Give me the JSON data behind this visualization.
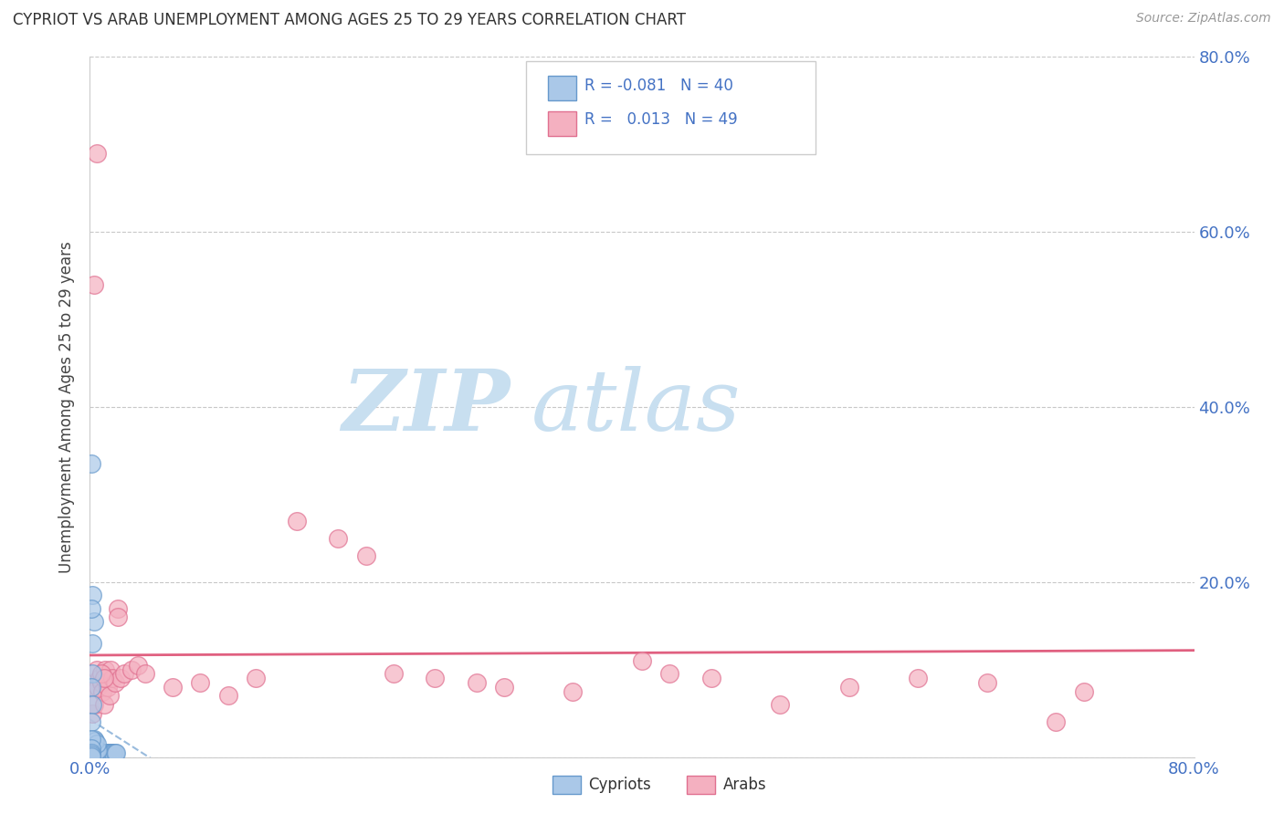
{
  "title": "CYPRIOT VS ARAB UNEMPLOYMENT AMONG AGES 25 TO 29 YEARS CORRELATION CHART",
  "source": "Source: ZipAtlas.com",
  "ylabel": "Unemployment Among Ages 25 to 29 years",
  "xlim": [
    0.0,
    0.8
  ],
  "ylim": [
    0.0,
    0.8
  ],
  "cypriot_color": "#aac8e8",
  "arab_color": "#f4b0c0",
  "cypriot_edge": "#6699cc",
  "arab_edge": "#e07090",
  "trend_cypriot_color": "#99bbdd",
  "trend_arab_color": "#e06080",
  "legend_cypriot_R": "-0.081",
  "legend_cypriot_N": "40",
  "legend_arab_R": "0.013",
  "legend_arab_N": "49",
  "background_color": "#ffffff",
  "grid_color": "#c8c8c8",
  "watermark_zip": "ZIP",
  "watermark_atlas": "atlas",
  "watermark_color_zip": "#c8dff0",
  "watermark_color_atlas": "#c8dff0",
  "cypriot_x": [
    0.002,
    0.003,
    0.004,
    0.005,
    0.006,
    0.007,
    0.008,
    0.009,
    0.01,
    0.011,
    0.012,
    0.013,
    0.014,
    0.015,
    0.016,
    0.017,
    0.018,
    0.019,
    0.002,
    0.003,
    0.004,
    0.005,
    0.006,
    0.003,
    0.004,
    0.005,
    0.002,
    0.003,
    0.002,
    0.001,
    0.001,
    0.002,
    0.001,
    0.002,
    0.001,
    0.001,
    0.001,
    0.001,
    0.001,
    0.001
  ],
  "cypriot_y": [
    0.005,
    0.005,
    0.005,
    0.005,
    0.005,
    0.005,
    0.005,
    0.005,
    0.005,
    0.005,
    0.005,
    0.005,
    0.005,
    0.005,
    0.005,
    0.005,
    0.005,
    0.005,
    0.01,
    0.01,
    0.008,
    0.008,
    0.008,
    0.02,
    0.018,
    0.015,
    0.13,
    0.155,
    0.185,
    0.335,
    0.17,
    0.095,
    0.08,
    0.06,
    0.04,
    0.02,
    0.01,
    0.005,
    0.003,
    0.001
  ],
  "arab_x": [
    0.001,
    0.002,
    0.003,
    0.004,
    0.005,
    0.006,
    0.007,
    0.008,
    0.009,
    0.01,
    0.011,
    0.012,
    0.013,
    0.014,
    0.015,
    0.016,
    0.018,
    0.02,
    0.022,
    0.025,
    0.03,
    0.035,
    0.04,
    0.06,
    0.08,
    0.1,
    0.12,
    0.15,
    0.18,
    0.2,
    0.22,
    0.25,
    0.28,
    0.3,
    0.35,
    0.4,
    0.42,
    0.45,
    0.5,
    0.55,
    0.6,
    0.65,
    0.7,
    0.72,
    0.003,
    0.005,
    0.008,
    0.01,
    0.02
  ],
  "arab_y": [
    0.005,
    0.05,
    0.06,
    0.08,
    0.1,
    0.08,
    0.09,
    0.085,
    0.075,
    0.06,
    0.1,
    0.09,
    0.08,
    0.07,
    0.1,
    0.09,
    0.085,
    0.17,
    0.09,
    0.095,
    0.1,
    0.105,
    0.095,
    0.08,
    0.085,
    0.07,
    0.09,
    0.27,
    0.25,
    0.23,
    0.095,
    0.09,
    0.085,
    0.08,
    0.075,
    0.11,
    0.095,
    0.09,
    0.06,
    0.08,
    0.09,
    0.085,
    0.04,
    0.075,
    0.54,
    0.69,
    0.095,
    0.09,
    0.16
  ]
}
